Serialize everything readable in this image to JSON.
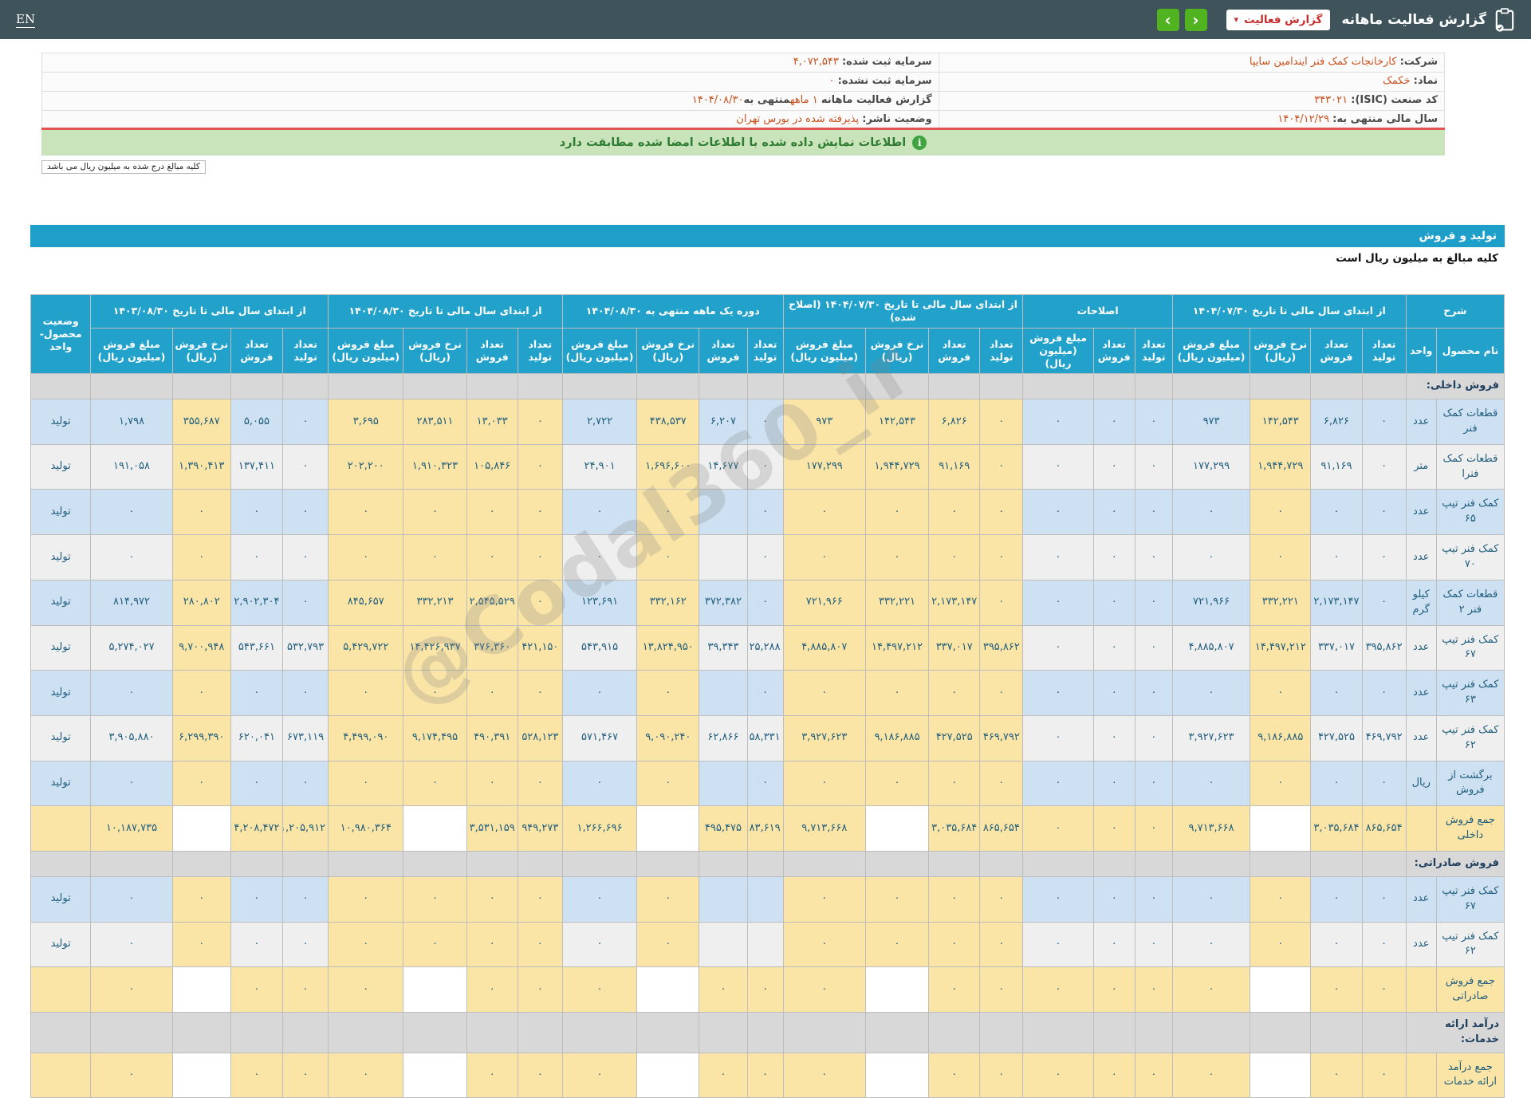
{
  "topbar": {
    "en": "EN",
    "title": "گزارش فعالیت ماهانه",
    "report_button": "گزارش فعالیت",
    "caret_down": "▾",
    "prev": "‹",
    "next": "›"
  },
  "info": {
    "right": [
      {
        "label": "شرکت:",
        "value": "کارخانجات کمک فنر ایندامین سایپا"
      },
      {
        "label": "نماد:",
        "value": "خکمک"
      },
      {
        "label": "کد صنعت (ISIC):",
        "value": "۳۴۳۰۲۱"
      },
      {
        "label": "سال مالی منتهی به:",
        "value": "۱۴۰۴/۱۲/۲۹"
      }
    ],
    "left": [
      {
        "label": "سرمایه ثبت شده:",
        "value": "۴,۰۷۲,۵۴۳"
      },
      {
        "label": "سرمایه ثبت نشده:",
        "value": "۰"
      },
      {
        "label": "گزارش فعالیت ماهانه",
        "value1": "۱ ماهه",
        "mid": "منتهی به",
        "value2": "۱۴۰۴/۰۸/۳۰"
      },
      {
        "label": "وضعیت ناشر:",
        "value": "پذیرفته شده در بورس تهران"
      }
    ]
  },
  "banner": {
    "icon": "i",
    "text": "اطلاعات نمایش داده شده با اطلاعات امضا شده مطابقت دارد"
  },
  "note": "کلیه مبالغ درج شده به میلیون ریال می باشد",
  "section": {
    "title": "تولید و فروش",
    "subtitle": "کلیه مبالغ به میلیون ریال است"
  },
  "watermark": "@Codal360_ir",
  "colors": {
    "accent_orange": "#C9501C",
    "header_blue": "#22A2CB",
    "cream": "#FBE5A6",
    "row_blue": "#CDE1F2",
    "row_light": "#EFEFEF",
    "row_gray": "#D8D8D8",
    "green_button": "#52B321",
    "banner_green": "#C9E3BA"
  },
  "table": {
    "desc_group": "شرح",
    "name_col": "نام محصول",
    "unit_col": "واحد",
    "status_col": "وضعیت\nمحصول-واحد",
    "sub4": [
      "تعداد\nتولید",
      "تعداد\nفروش",
      "نرخ فروش\n(ریال)",
      "مبلغ فروش\n(میلیون ریال)"
    ],
    "sub3": [
      "تعداد\nتولید",
      "تعداد\nفروش",
      "مبلغ فروش\n(میلیون ریال)"
    ],
    "groups": [
      {
        "id": "g1",
        "label": "از ابتدای سال مالی تا تاریخ ۱۴۰۴/۰۷/۳۰",
        "cols": 4,
        "cream": false
      },
      {
        "id": "g2",
        "label": "اصلاحات",
        "cols": 3,
        "cream": false
      },
      {
        "id": "g3",
        "label": "از ابتدای سال مالی تا تاریخ ۱۴۰۴/۰۷/۳۰ (اصلاح شده)",
        "cols": 4,
        "cream": true
      },
      {
        "id": "g4",
        "label": "دوره یک ماهه منتهی به ۱۴۰۴/۰۸/۳۰",
        "cols": 4,
        "cream": false
      },
      {
        "id": "g5",
        "label": "از ابتدای سال مالی تا تاریخ ۱۴۰۴/۰۸/۳۰",
        "cols": 4,
        "cream": true
      },
      {
        "id": "g6",
        "label": "از ابتدای سال مالی تا تاریخ ۱۴۰۳/۰۸/۳۰",
        "cols": 4,
        "cream": false
      }
    ],
    "rows": [
      {
        "type": "section",
        "name": "فروش داخلی:"
      },
      {
        "type": "product",
        "shade": "blue",
        "name": "قطعات کمک فنر",
        "unit": "عدد",
        "status": "تولید",
        "g1": [
          "۰",
          "۶,۸۲۶",
          "۱۴۲,۵۴۳",
          "۹۷۳"
        ],
        "g2": [
          "۰",
          "۰",
          "۰"
        ],
        "g3": [
          "۰",
          "۶,۸۲۶",
          "۱۴۲,۵۴۳",
          "۹۷۳"
        ],
        "g4": [
          "۰",
          "۶,۲۰۷",
          "۴۳۸,۵۳۷",
          "۲,۷۲۲"
        ],
        "g5": [
          "۰",
          "۱۳,۰۳۳",
          "۲۸۳,۵۱۱",
          "۳,۶۹۵"
        ],
        "g6": [
          "۰",
          "۵,۰۵۵",
          "۳۵۵,۶۸۷",
          "۱,۷۹۸"
        ]
      },
      {
        "type": "product",
        "shade": "light",
        "name": "قطعات کمک فنرا",
        "unit": "متر",
        "status": "تولید",
        "g1": [
          "۰",
          "۹۱,۱۶۹",
          "۱,۹۴۴,۷۲۹",
          "۱۷۷,۲۹۹"
        ],
        "g2": [
          "۰",
          "۰",
          "۰"
        ],
        "g3": [
          "۰",
          "۹۱,۱۶۹",
          "۱,۹۴۴,۷۲۹",
          "۱۷۷,۲۹۹"
        ],
        "g4": [
          "۰",
          "۱۴,۶۷۷",
          "۱,۶۹۶,۶۰۰",
          "۲۴,۹۰۱"
        ],
        "g5": [
          "۰",
          "۱۰۵,۸۴۶",
          "۱,۹۱۰,۳۲۳",
          "۲۰۲,۲۰۰"
        ],
        "g6": [
          "۰",
          "۱۳۷,۴۱۱",
          "۱,۳۹۰,۴۱۳",
          "۱۹۱,۰۵۸"
        ]
      },
      {
        "type": "product",
        "shade": "blue",
        "name": "کمک فنر تیپ ۶۵",
        "unit": "عدد",
        "status": "تولید",
        "g1": [
          "۰",
          "۰",
          "۰",
          "۰"
        ],
        "g2": [
          "۰",
          "۰",
          "۰"
        ],
        "g3": [
          "۰",
          "۰",
          "۰",
          "۰"
        ],
        "g4": [
          "۰",
          "",
          "۰",
          "۰"
        ],
        "g5": [
          "۰",
          "۰",
          "۰",
          "۰"
        ],
        "g6": [
          "۰",
          "۰",
          "۰",
          "۰"
        ]
      },
      {
        "type": "product",
        "shade": "light",
        "name": "کمک فنر تیپ ۷۰",
        "unit": "عدد",
        "status": "تولید",
        "g1": [
          "۰",
          "۰",
          "۰",
          "۰"
        ],
        "g2": [
          "۰",
          "۰",
          "۰"
        ],
        "g3": [
          "۰",
          "۰",
          "۰",
          "۰"
        ],
        "g4": [
          "۰",
          "",
          "۰",
          "۰"
        ],
        "g5": [
          "۰",
          "۰",
          "۰",
          "۰"
        ],
        "g6": [
          "۰",
          "۰",
          "۰",
          "۰"
        ]
      },
      {
        "type": "product",
        "shade": "blue",
        "name": "قطعات کمک فنر ۲",
        "unit": "کیلو گرم",
        "status": "تولید",
        "g1": [
          "۰",
          "۲,۱۷۳,۱۴۷",
          "۳۳۲,۲۲۱",
          "۷۲۱,۹۶۶"
        ],
        "g2": [
          "۰",
          "۰",
          "۰"
        ],
        "g3": [
          "۰",
          "۲,۱۷۳,۱۴۷",
          "۳۳۲,۲۲۱",
          "۷۲۱,۹۶۶"
        ],
        "g4": [
          "۰",
          "۳۷۲,۳۸۲",
          "۳۳۲,۱۶۲",
          "۱۲۳,۶۹۱"
        ],
        "g5": [
          "۰",
          "۲,۵۴۵,۵۲۹",
          "۳۳۲,۲۱۳",
          "۸۴۵,۶۵۷"
        ],
        "g6": [
          "۰",
          "۲,۹۰۲,۳۰۴",
          "۲۸۰,۸۰۲",
          "۸۱۴,۹۷۲"
        ]
      },
      {
        "type": "product",
        "shade": "light",
        "name": "کمک فنر تیپ ۶۷",
        "unit": "عدد",
        "status": "تولید",
        "g1": [
          "۳۹۵,۸۶۲",
          "۳۳۷,۰۱۷",
          "۱۴,۴۹۷,۲۱۲",
          "۴,۸۸۵,۸۰۷"
        ],
        "g2": [
          "۰",
          "۰",
          "۰"
        ],
        "g3": [
          "۳۹۵,۸۶۲",
          "۳۳۷,۰۱۷",
          "۱۴,۴۹۷,۲۱۲",
          "۴,۸۸۵,۸۰۷"
        ],
        "g4": [
          "۲۵,۲۸۸",
          "۳۹,۳۴۳",
          "۱۳,۸۲۴,۹۵۰",
          "۵۴۳,۹۱۵"
        ],
        "g5": [
          "۴۲۱,۱۵۰",
          "۳۷۶,۳۶۰",
          "۱۴,۴۲۶,۹۳۷",
          "۵,۴۲۹,۷۲۲"
        ],
        "g6": [
          "۵۳۲,۷۹۳",
          "۵۴۳,۶۶۱",
          "۹,۷۰۰,۹۴۸",
          "۵,۲۷۴,۰۲۷"
        ]
      },
      {
        "type": "product",
        "shade": "blue",
        "name": "کمک فنر تیپ ۶۳",
        "unit": "عدد",
        "status": "تولید",
        "g1": [
          "۰",
          "۰",
          "۰",
          "۰"
        ],
        "g2": [
          "۰",
          "۰",
          "۰"
        ],
        "g3": [
          "۰",
          "۰",
          "۰",
          "۰"
        ],
        "g4": [
          "۰",
          "",
          "۰",
          "۰"
        ],
        "g5": [
          "۰",
          "۰",
          "۰",
          "۰"
        ],
        "g6": [
          "۰",
          "۰",
          "۰",
          "۰"
        ]
      },
      {
        "type": "product",
        "shade": "light",
        "name": "کمک فنر تیپ ۶۲",
        "unit": "عدد",
        "status": "تولید",
        "g1": [
          "۴۶۹,۷۹۲",
          "۴۲۷,۵۲۵",
          "۹,۱۸۶,۸۸۵",
          "۳,۹۲۷,۶۲۳"
        ],
        "g2": [
          "۰",
          "۰",
          "۰"
        ],
        "g3": [
          "۴۶۹,۷۹۲",
          "۴۲۷,۵۲۵",
          "۹,۱۸۶,۸۸۵",
          "۳,۹۲۷,۶۲۳"
        ],
        "g4": [
          "۵۸,۳۳۱",
          "۶۲,۸۶۶",
          "۹,۰۹۰,۲۴۰",
          "۵۷۱,۴۶۷"
        ],
        "g5": [
          "۵۲۸,۱۲۳",
          "۴۹۰,۳۹۱",
          "۹,۱۷۴,۴۹۵",
          "۴,۴۹۹,۰۹۰"
        ],
        "g6": [
          "۶۷۳,۱۱۹",
          "۶۲۰,۰۴۱",
          "۶,۲۹۹,۳۹۰",
          "۳,۹۰۵,۸۸۰"
        ]
      },
      {
        "type": "product",
        "shade": "blue",
        "name": "برگشت از فروش",
        "unit": "ریال",
        "status": "تولید",
        "g1": [
          "۰",
          "۰",
          "۰",
          "۰"
        ],
        "g2": [
          "۰",
          "۰",
          "۰"
        ],
        "g3": [
          "۰",
          "۰",
          "۰",
          "۰"
        ],
        "g4": [
          "۰",
          "",
          "۰",
          "۰"
        ],
        "g5": [
          "۰",
          "۰",
          "۰",
          "۰"
        ],
        "g6": [
          "۰",
          "۰",
          "۰",
          "۰"
        ]
      },
      {
        "type": "total",
        "name": "جمع فروش داخلی",
        "unit": "",
        "status": "",
        "g1": [
          "۸۶۵,۶۵۴",
          "۳,۰۳۵,۶۸۴",
          "",
          "۹,۷۱۳,۶۶۸"
        ],
        "g2": [
          "۰",
          "۰",
          "۰"
        ],
        "g3": [
          "۸۶۵,۶۵۴",
          "۳,۰۳۵,۶۸۴",
          "",
          "۹,۷۱۳,۶۶۸"
        ],
        "g4": [
          "۸۳,۶۱۹",
          "۴۹۵,۴۷۵",
          "",
          "۱,۲۶۶,۶۹۶"
        ],
        "g5": [
          "۹۴۹,۲۷۳",
          "۳,۵۳۱,۱۵۹",
          "",
          "۱۰,۹۸۰,۳۶۴"
        ],
        "g6": [
          "۱,۲۰۵,۹۱۲",
          "۴,۲۰۸,۴۷۲",
          "",
          "۱۰,۱۸۷,۷۳۵"
        ]
      },
      {
        "type": "section",
        "name": "فروش صادراتی:"
      },
      {
        "type": "product",
        "shade": "blue",
        "name": "کمک فنر تیپ ۶۷",
        "unit": "عدد",
        "status": "تولید",
        "g1": [
          "۰",
          "۰",
          "۰",
          "۰"
        ],
        "g2": [
          "۰",
          "۰",
          "۰"
        ],
        "g3": [
          "۰",
          "۰",
          "۰",
          "۰"
        ],
        "g4": [
          "",
          "",
          "۰",
          "۰"
        ],
        "g5": [
          "۰",
          "۰",
          "۰",
          "۰"
        ],
        "g6": [
          "۰",
          "۰",
          "۰",
          "۰"
        ]
      },
      {
        "type": "product",
        "shade": "light",
        "name": "کمک فنر تیپ ۶۲",
        "unit": "عدد",
        "status": "تولید",
        "g1": [
          "۰",
          "۰",
          "۰",
          "۰"
        ],
        "g2": [
          "۰",
          "۰",
          "۰"
        ],
        "g3": [
          "۰",
          "۰",
          "۰",
          "۰"
        ],
        "g4": [
          "",
          "",
          "۰",
          "۰"
        ],
        "g5": [
          "۰",
          "۰",
          "۰",
          "۰"
        ],
        "g6": [
          "۰",
          "۰",
          "۰",
          "۰"
        ]
      },
      {
        "type": "total",
        "name": "جمع فروش صادراتی",
        "unit": "",
        "status": "",
        "g1": [
          "۰",
          "۰",
          "",
          "۰"
        ],
        "g2": [
          "۰",
          "۰",
          "۰"
        ],
        "g3": [
          "۰",
          "۰",
          "",
          "۰"
        ],
        "g4": [
          "۰",
          "۰",
          "",
          "۰"
        ],
        "g5": [
          "۰",
          "۰",
          "",
          "۰"
        ],
        "g6": [
          "۰",
          "۰",
          "",
          "۰"
        ]
      },
      {
        "type": "section",
        "name": "درآمد ارائه خدمات:"
      },
      {
        "type": "total",
        "name": "جمع درآمد ارائه خدمات",
        "unit": "",
        "status": "",
        "g1": [
          "۰",
          "۰",
          "",
          "۰"
        ],
        "g2": [
          "۰",
          "۰",
          "۰"
        ],
        "g3": [
          "۰",
          "۰",
          "",
          "۰"
        ],
        "g4": [
          "۰",
          "۰",
          "",
          "۰"
        ],
        "g5": [
          "۰",
          "۰",
          "",
          "۰"
        ],
        "g6": [
          "۰",
          "۰",
          "",
          "۰"
        ]
      }
    ]
  }
}
